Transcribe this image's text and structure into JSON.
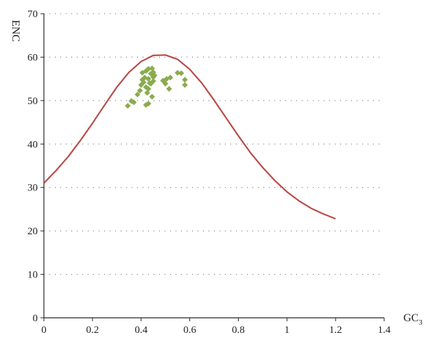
{
  "chart_data": {
    "type": "scatter",
    "xlabel": "GC",
    "xlabel_sub": "3",
    "ylabel": "ENC",
    "xlim": [
      0,
      1.4
    ],
    "ylim": [
      0,
      70
    ],
    "xticks": [
      0,
      0.2,
      0.4,
      0.6,
      0.8,
      1,
      1.2,
      1.4
    ],
    "xtick_labels": [
      "0",
      "0.2",
      "0.4",
      "0.6",
      "0.8",
      "1",
      "1.2",
      "1.4"
    ],
    "yticks": [
      0,
      10,
      20,
      30,
      40,
      50,
      60,
      70
    ],
    "ytick_labels": [
      "0",
      "10",
      "20",
      "30",
      "40",
      "50",
      "60",
      "70"
    ],
    "grid": "horizontal dotted",
    "colors": {
      "points": "#8aab4e",
      "curve": "#b84a46",
      "axis": "#222222",
      "grid": "#555555"
    },
    "points": [
      [
        0.345,
        48.8
      ],
      [
        0.36,
        49.9
      ],
      [
        0.37,
        49.6
      ],
      [
        0.385,
        51.4
      ],
      [
        0.395,
        52.3
      ],
      [
        0.4,
        53.6
      ],
      [
        0.405,
        54.8
      ],
      [
        0.41,
        54.2
      ],
      [
        0.405,
        56.4
      ],
      [
        0.415,
        55.3
      ],
      [
        0.42,
        56.8
      ],
      [
        0.42,
        53.1
      ],
      [
        0.425,
        51.8
      ],
      [
        0.43,
        52.7
      ],
      [
        0.43,
        55.0
      ],
      [
        0.43,
        57.3
      ],
      [
        0.435,
        54.0
      ],
      [
        0.44,
        56.2
      ],
      [
        0.44,
        53.9
      ],
      [
        0.445,
        57.4
      ],
      [
        0.45,
        55.4
      ],
      [
        0.45,
        56.5
      ],
      [
        0.455,
        55.8
      ],
      [
        0.45,
        54.5
      ],
      [
        0.42,
        49.0
      ],
      [
        0.43,
        49.3
      ],
      [
        0.445,
        50.9
      ],
      [
        0.49,
        54.6
      ],
      [
        0.5,
        53.9
      ],
      [
        0.505,
        55.0
      ],
      [
        0.515,
        52.7
      ],
      [
        0.52,
        55.3
      ],
      [
        0.55,
        56.4
      ],
      [
        0.565,
        56.3
      ],
      [
        0.58,
        54.8
      ],
      [
        0.58,
        53.6
      ]
    ],
    "curve": [
      [
        0,
        31.0
      ],
      [
        0.05,
        33.9
      ],
      [
        0.1,
        37.1
      ],
      [
        0.15,
        40.8
      ],
      [
        0.2,
        44.8
      ],
      [
        0.25,
        49.0
      ],
      [
        0.3,
        53.1
      ],
      [
        0.35,
        56.5
      ],
      [
        0.4,
        59.0
      ],
      [
        0.45,
        60.4
      ],
      [
        0.5,
        60.5
      ],
      [
        0.55,
        59.5
      ],
      [
        0.6,
        57.2
      ],
      [
        0.65,
        54.0
      ],
      [
        0.7,
        50.1
      ],
      [
        0.75,
        46.0
      ],
      [
        0.8,
        41.9
      ],
      [
        0.85,
        38.0
      ],
      [
        0.9,
        34.6
      ],
      [
        0.95,
        31.6
      ],
      [
        1.0,
        29.0
      ],
      [
        1.05,
        26.9
      ],
      [
        1.1,
        25.2
      ],
      [
        1.15,
        23.9
      ],
      [
        1.2,
        22.8
      ]
    ]
  }
}
